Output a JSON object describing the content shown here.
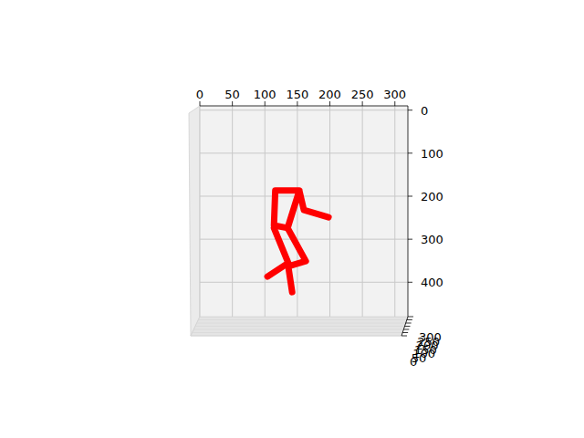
{
  "chart_data": {
    "type": "line",
    "color": "red",
    "line_style": "solid",
    "grid": true,
    "xlim": [
      0,
      320
    ],
    "xticks": [
      0,
      50,
      100,
      150,
      200,
      250,
      300
    ],
    "ylim": [
      480,
      -10
    ],
    "yticks": [
      0,
      100,
      200,
      300,
      400
    ],
    "zlim": [
      0,
      300
    ],
    "zticks": [
      0,
      50,
      100,
      150,
      200,
      250,
      300
    ],
    "series": [
      {
        "color": "red",
        "x": [
          198,
          160,
          153,
          116,
          114,
          135,
          153
        ],
        "values": [
          249,
          232,
          187,
          187,
          268,
          274,
          187
        ]
      },
      {
        "color": "red",
        "x": [
          114,
          136,
          104
        ],
        "values": [
          274,
          355,
          387
        ]
      },
      {
        "color": "red",
        "x": [
          135,
          163,
          136,
          142
        ],
        "values": [
          274,
          351,
          363,
          423
        ]
      }
    ]
  }
}
